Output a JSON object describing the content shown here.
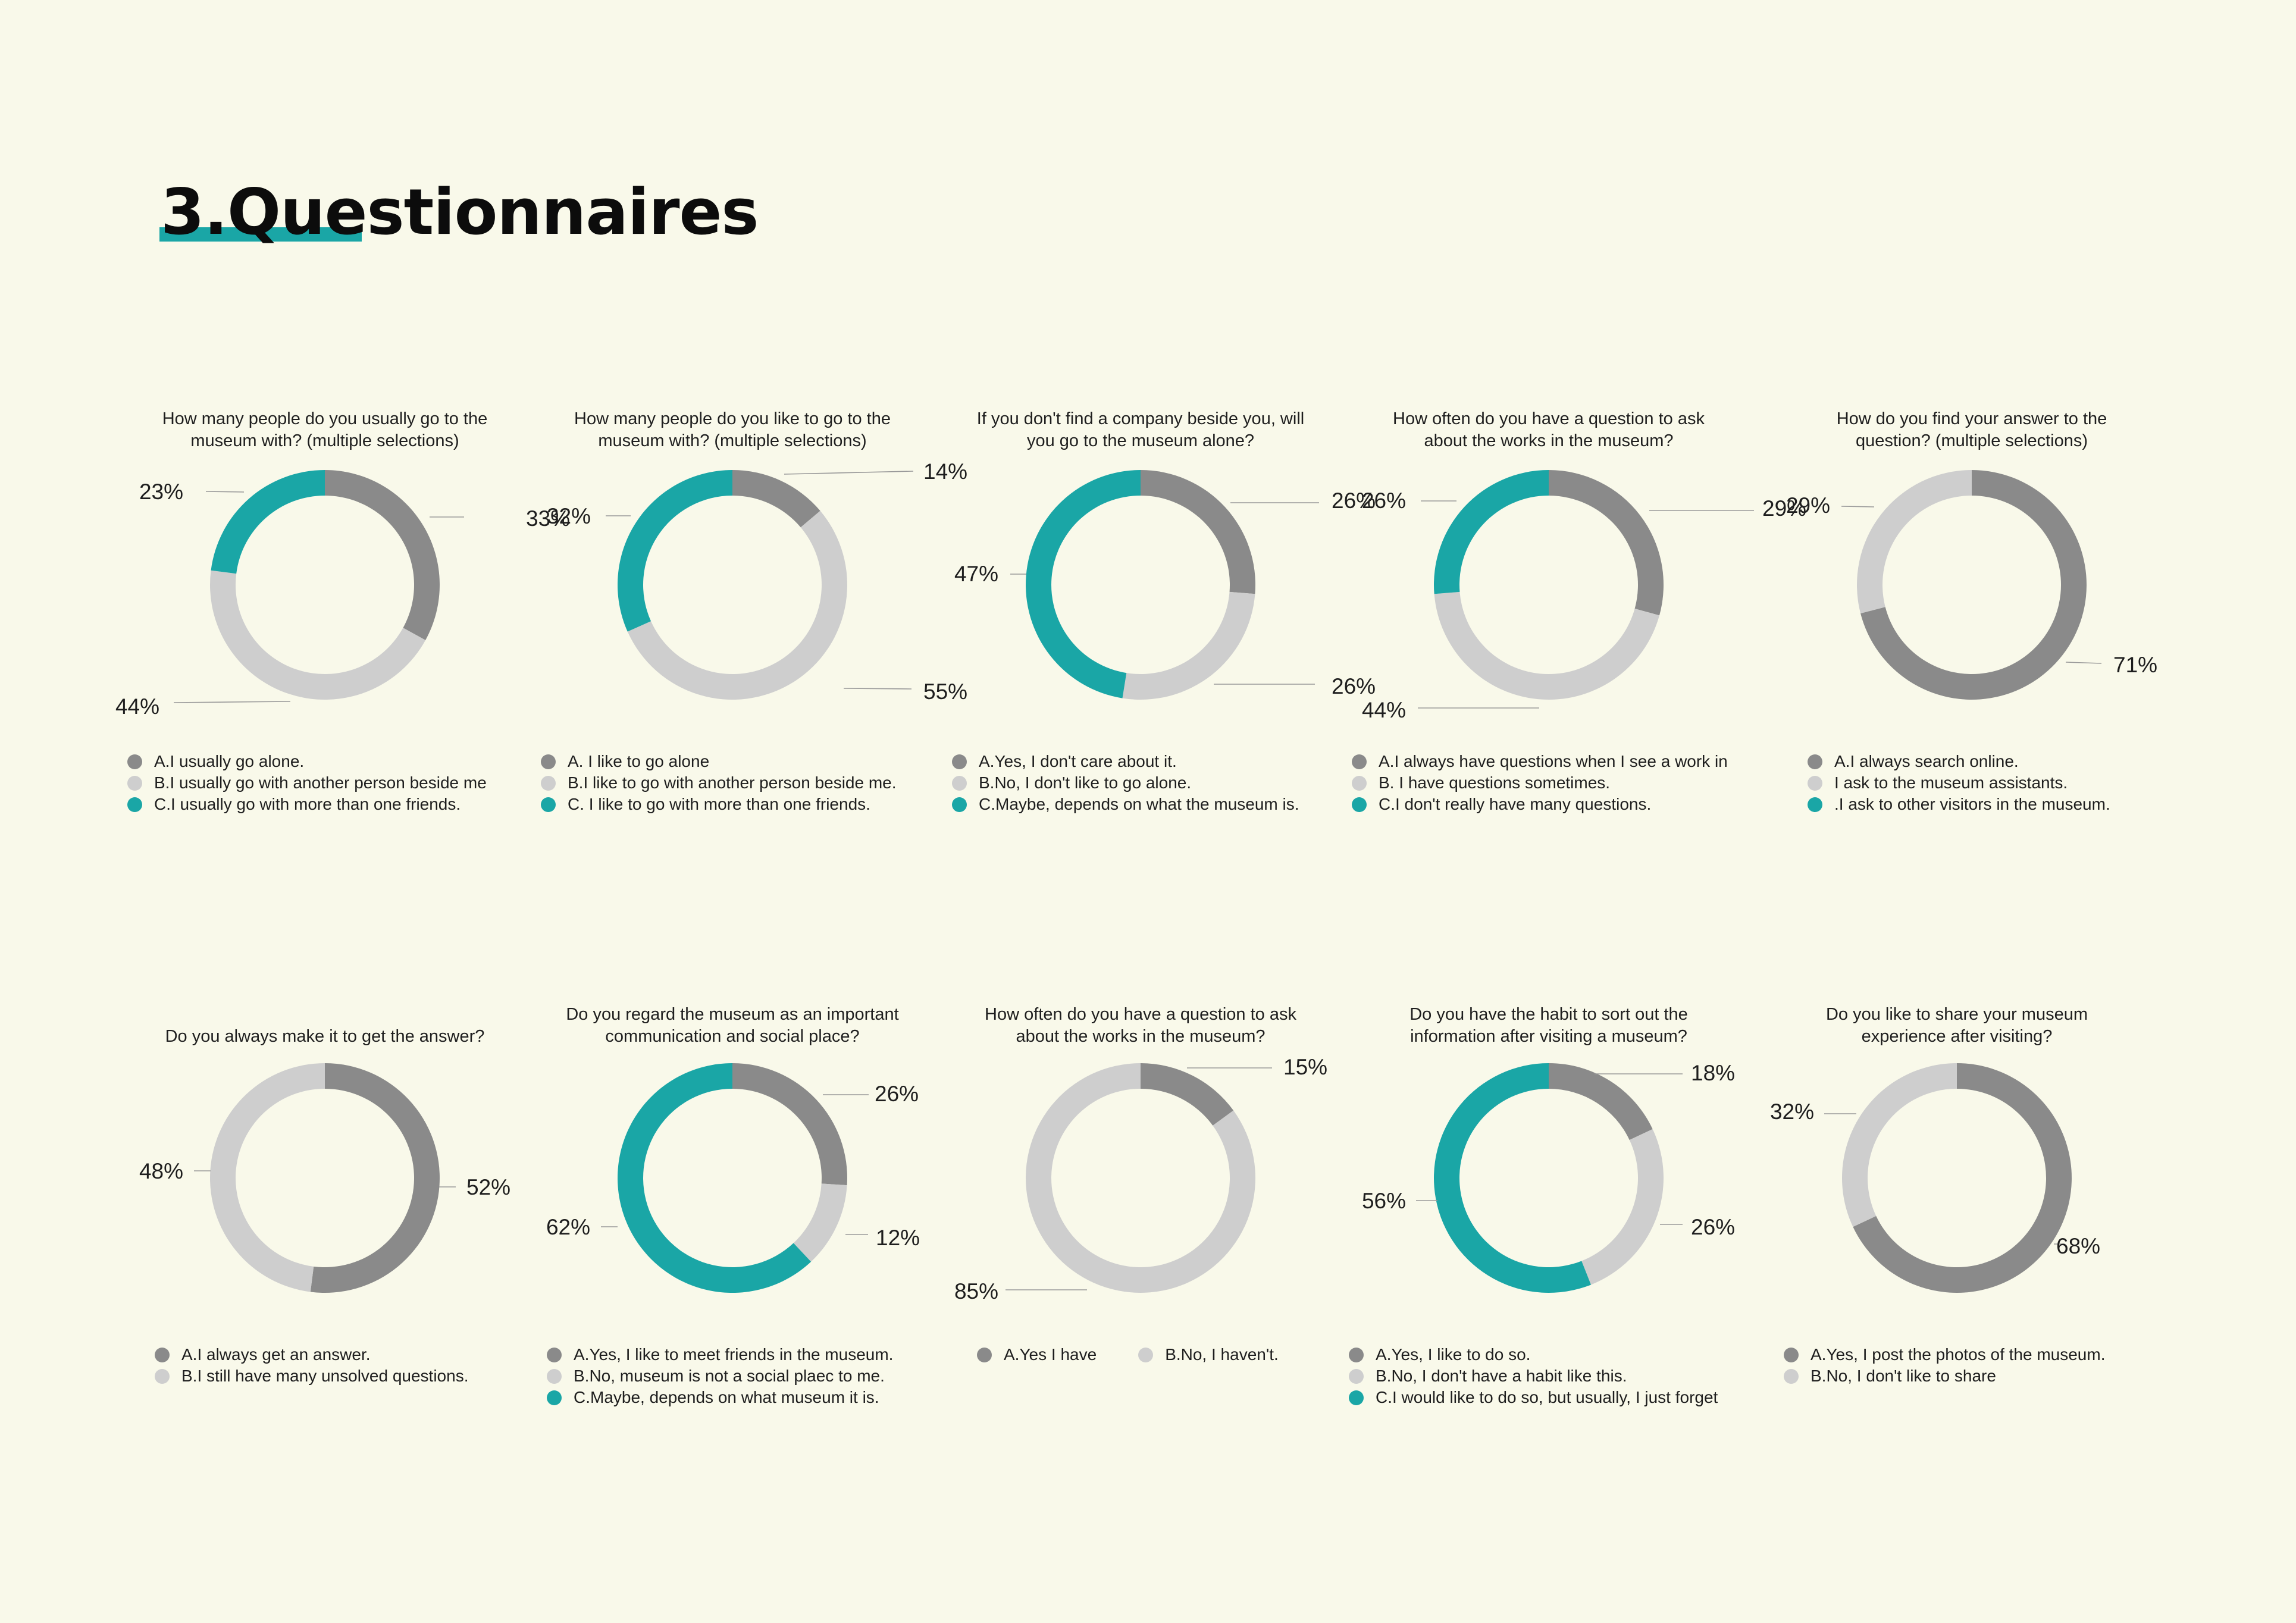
{
  "page": {
    "title": "3.Questionnaires"
  },
  "colors": {
    "seg_a": "#8a8a8a",
    "seg_b": "#cecece",
    "seg_c": "#1aa6a6",
    "accent": "#1aa6a6",
    "background": "#f9f9ea"
  },
  "chart_data": [
    {
      "type": "pie",
      "style": "donut",
      "title": "How many people do you usually go to the museum with? (multiple   selections)",
      "slices": [
        {
          "label": "A.I usually go alone.",
          "value": 33,
          "value_label": "33%",
          "color": "#8a8a8a"
        },
        {
          "label": "B.I usually go with another person beside me",
          "value": 44,
          "value_label": "44%",
          "color": "#cecece"
        },
        {
          "label": "C.I usually go with more than one friends.",
          "value": 23,
          "value_label": "23%",
          "color": "#1aa6a6"
        }
      ]
    },
    {
      "type": "pie",
      "style": "donut",
      "title": "How many people do you like to go to the museum with? (multiple   selections)",
      "slices": [
        {
          "label": "A. I like to go alone",
          "value": 14,
          "value_label": "14%",
          "color": "#8a8a8a"
        },
        {
          "label": "B.I like to go with another person beside me.",
          "value": 55,
          "value_label": "55%",
          "color": "#cecece"
        },
        {
          "label": "C. I like to go with more than one friends.",
          "value": 32,
          "value_label": "32%",
          "color": "#1aa6a6"
        }
      ]
    },
    {
      "type": "pie",
      "style": "donut",
      "title": "If you don't find a company beside you, will you go to the museum alone?",
      "slices": [
        {
          "label": "A.Yes, I don't care about it.",
          "value": 26,
          "value_label": "26%",
          "color": "#8a8a8a"
        },
        {
          "label": "B.No, I don't like to go alone.",
          "value": 26,
          "value_label": "26%",
          "color": "#cecece"
        },
        {
          "label": "C.Maybe, depends on what the museum is.",
          "value": 47,
          "value_label": "47%",
          "color": "#1aa6a6"
        }
      ]
    },
    {
      "type": "pie",
      "style": "donut",
      "title": "How often do you have a question to ask about the works in the museum?",
      "slices": [
        {
          "label": "A.I always have questions when I see a work in",
          "value": 29,
          "value_label": "29%",
          "color": "#8a8a8a"
        },
        {
          "label": "B. I have questions sometimes.",
          "value": 44,
          "value_label": "44%",
          "color": "#cecece"
        },
        {
          "label": "C.I don't really have many questions.",
          "value": 26,
          "value_label": "26%",
          "color": "#1aa6a6"
        }
      ]
    },
    {
      "type": "pie",
      "style": "donut",
      "title": "How do you find your answer to the question? (multiple selections)",
      "slices": [
        {
          "label": "A.I always search online.",
          "value": 71,
          "value_label": "71%",
          "color": "#8a8a8a"
        },
        {
          "label": "I ask to the museum assistants.",
          "value": 29,
          "value_label": "29%",
          "color": "#cecece"
        },
        {
          "label": ".I ask to other visitors in the museum.",
          "value": 0,
          "value_label": "",
          "color": "#1aa6a6"
        }
      ]
    },
    {
      "type": "pie",
      "style": "donut",
      "title": "Do you always make it to get the answer?",
      "slices": [
        {
          "label": "A.I always get an answer.",
          "value": 52,
          "value_label": "52%",
          "color": "#8a8a8a"
        },
        {
          "label": "B.I still have many unsolved questions.",
          "value": 48,
          "value_label": "48%",
          "color": "#cecece"
        }
      ]
    },
    {
      "type": "pie",
      "style": "donut",
      "title": "Do you regard the museum as an important communication and social place?",
      "slices": [
        {
          "label": "A.Yes, I like to meet friends in the museum.",
          "value": 26,
          "value_label": "26%",
          "color": "#8a8a8a"
        },
        {
          "label": "B.No, museum is not a social plaec to me.",
          "value": 12,
          "value_label": "12%",
          "color": "#cecece"
        },
        {
          "label": "C.Maybe, depends on what museum it is.",
          "value": 62,
          "value_label": "62%",
          "color": "#1aa6a6"
        }
      ]
    },
    {
      "type": "pie",
      "style": "donut",
      "title": "How often do you have a question to ask about the works in the museum?",
      "slices": [
        {
          "label": "A.Yes I have",
          "value": 15,
          "value_label": "15%",
          "color": "#8a8a8a"
        },
        {
          "label": "B.No, I haven't.",
          "value": 85,
          "value_label": "85%",
          "color": "#cecece"
        }
      ]
    },
    {
      "type": "pie",
      "style": "donut",
      "title": "Do you have the habit to sort out the information after visiting a museum?",
      "slices": [
        {
          "label": "A.Yes, I like to do so.",
          "value": 18,
          "value_label": "18%",
          "color": "#8a8a8a"
        },
        {
          "label": "B.No, I don't have a habit like this.",
          "value": 26,
          "value_label": "26%",
          "color": "#cecece"
        },
        {
          "label": "C.I would like to do so, but usually, I just forget",
          "value": 56,
          "value_label": "56%",
          "color": "#1aa6a6"
        }
      ]
    },
    {
      "type": "pie",
      "style": "donut",
      "title": "Do you like to share your museum experience after visiting?",
      "slices": [
        {
          "label": "A.Yes, I post the photos of the museum.",
          "value": 68,
          "value_label": "68%",
          "color": "#8a8a8a"
        },
        {
          "label": "B.No, I don't like to share",
          "value": 32,
          "value_label": "32%",
          "color": "#cecece"
        }
      ]
    }
  ]
}
